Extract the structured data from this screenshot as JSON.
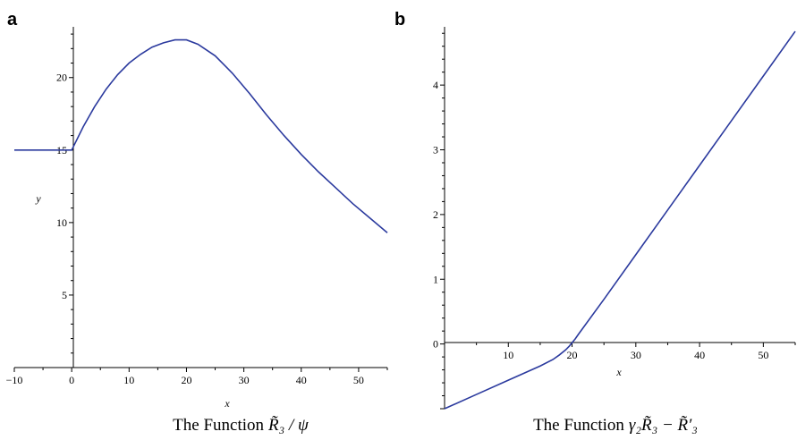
{
  "chart_data": [
    {
      "panel": "a",
      "type": "line",
      "xlabel": "x",
      "ylabel": "y",
      "xlim": [
        -10,
        55
      ],
      "ylim": [
        0,
        23.5
      ],
      "xticks": [
        -10,
        0,
        10,
        20,
        30,
        40,
        50
      ],
      "yticks": [
        5,
        10,
        15,
        20
      ],
      "xtick_labels": [
        "−10",
        "0",
        "10",
        "20",
        "30",
        "40",
        "50"
      ],
      "ytick_labels": [
        "5",
        "10",
        "15",
        "20"
      ],
      "color": "#2b3a9e",
      "x": [
        -10,
        -5,
        0,
        2,
        4,
        6,
        8,
        10,
        12,
        14,
        16,
        18,
        20,
        22,
        25,
        28,
        31,
        34,
        37,
        40,
        43,
        46,
        49,
        52,
        55
      ],
      "y": [
        15.0,
        15.0,
        15.0,
        16.6,
        18.0,
        19.2,
        20.2,
        21.0,
        21.6,
        22.1,
        22.4,
        22.6,
        22.6,
        22.3,
        21.5,
        20.3,
        18.9,
        17.4,
        16.0,
        14.7,
        13.5,
        12.4,
        11.3,
        10.3,
        9.3
      ],
      "caption_prefix": "The Function",
      "caption_math": "R̃₃ / ψ"
    },
    {
      "panel": "b",
      "type": "line",
      "xlabel": "x",
      "xlim": [
        0,
        55
      ],
      "ylim": [
        -1,
        4.9
      ],
      "xticks": [
        10,
        20,
        30,
        40,
        50
      ],
      "yticks": [
        0,
        1,
        2,
        3,
        4
      ],
      "xtick_labels": [
        "10",
        "20",
        "30",
        "40",
        "50"
      ],
      "ytick_labels": [
        "0",
        "1",
        "2",
        "3",
        "4"
      ],
      "color": "#2b3a9e",
      "x": [
        0,
        5,
        10,
        15,
        17,
        18,
        19,
        19.6,
        20,
        20.5,
        21,
        25,
        30,
        35,
        40,
        45,
        50,
        55
      ],
      "y": [
        -1.0,
        -0.78,
        -0.56,
        -0.34,
        -0.24,
        -0.17,
        -0.09,
        -0.03,
        0.02,
        0.08,
        0.15,
        0.69,
        1.38,
        2.07,
        2.76,
        3.45,
        4.14,
        4.83
      ],
      "caption_prefix": "The Function",
      "caption_math": "γ₂R̃₃ − R̃′₃"
    }
  ]
}
